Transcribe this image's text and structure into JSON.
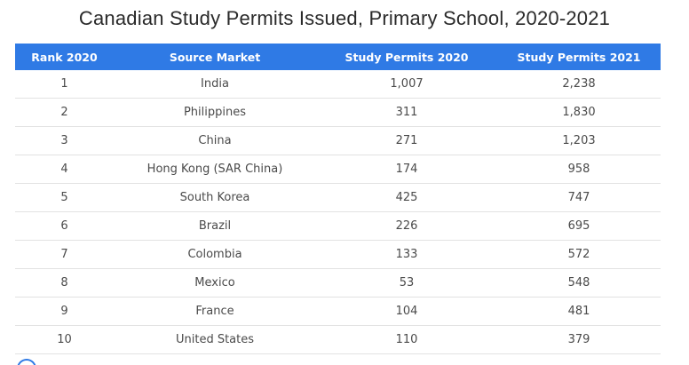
{
  "title": "Canadian Study Permits Issued, Primary School, 2020-2021",
  "colors": {
    "header_bg": "#2f7ae5",
    "header_text": "#ffffff",
    "row_text": "#4a4a4a",
    "divider": "#e2e2e2"
  },
  "table": {
    "headers": [
      "Rank 2020",
      "Source Market",
      "Study Permits 2020",
      "Study Permits 2021"
    ],
    "rows": [
      [
        "1",
        "India",
        "1,007",
        "2,238"
      ],
      [
        "2",
        "Philippines",
        "311",
        "1,830"
      ],
      [
        "3",
        "China",
        "271",
        "1,203"
      ],
      [
        "4",
        "Hong Kong (SAR China)",
        "174",
        "958"
      ],
      [
        "5",
        "South Korea",
        "425",
        "747"
      ],
      [
        "6",
        "Brazil",
        "226",
        "695"
      ],
      [
        "7",
        "Colombia",
        "133",
        "572"
      ],
      [
        "8",
        "Mexico",
        "53",
        "548"
      ],
      [
        "9",
        "France",
        "104",
        "481"
      ],
      [
        "10",
        "United States",
        "110",
        "379"
      ]
    ]
  },
  "chart_data": {
    "type": "table",
    "title": "Canadian Study Permits Issued, Primary School, 2020-2021",
    "columns": [
      "Rank 2020",
      "Source Market",
      "Study Permits 2020",
      "Study Permits 2021"
    ],
    "categories": [
      "India",
      "Philippines",
      "China",
      "Hong Kong (SAR China)",
      "South Korea",
      "Brazil",
      "Colombia",
      "Mexico",
      "France",
      "United States"
    ],
    "series": [
      {
        "name": "Study Permits 2020",
        "values": [
          1007,
          311,
          271,
          174,
          425,
          226,
          133,
          53,
          104,
          110
        ]
      },
      {
        "name": "Study Permits 2021",
        "values": [
          2238,
          1830,
          1203,
          958,
          747,
          695,
          572,
          548,
          481,
          379
        ]
      }
    ]
  }
}
